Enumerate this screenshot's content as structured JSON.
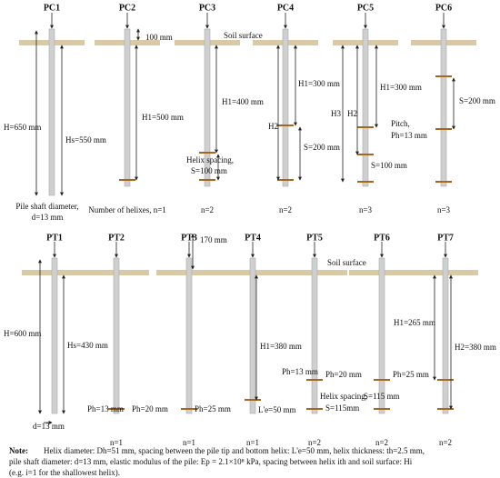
{
  "top_row": {
    "pile_labels": [
      "PC1",
      "PC2",
      "PC3",
      "PC4",
      "PC5",
      "PC6"
    ],
    "annotations": [
      "H=650 mm",
      "Hs=550 mm",
      "Pile shaft diameter,",
      "d=13 mm",
      "100 mm",
      "H1=500 mm",
      "Number of helixes, n=1",
      "Soil surface",
      "H1=400 mm",
      "Helix spacing,",
      "S=100 mm",
      "n=2",
      "H1=300 mm",
      "H2",
      "S=200 mm",
      "n=2",
      "H1=300 mm",
      "H3",
      "H2",
      "S=100 mm",
      "n=3",
      "S=200 mm",
      "Pitch,",
      "Ph=13 mm",
      "n=3"
    ]
  },
  "bottom_row": {
    "pile_labels": [
      "PT1",
      "PT2",
      "PT3",
      "PT4",
      "PT5",
      "PT6",
      "PT7"
    ],
    "annotations": [
      "H=600 mm",
      "Hs=430 mm",
      "d=13 mm",
      "Ph=13 mm",
      "n=1",
      "170 mm",
      "Ph=20 mm",
      "Ph=25 mm",
      "n=1",
      "H1=380 mm",
      "Ph=13 mm",
      "L'e=50 mm",
      "n=1",
      "Soil surface",
      "Ph=20 mm",
      "Helix spacing,",
      "S=115mm",
      "n=2",
      "Ph=25 mm",
      "S=115 mm",
      "n=2",
      "H1=265 mm",
      "H2=380 mm",
      "n=2"
    ]
  },
  "note": {
    "label": "Note:",
    "lines": [
      "Helix diameter: Dh=51 mm, spacing between the pile tip and bottom helix: L'e=50 mm,      helix thickness: th=2.5 mm,",
      "pile shaft diameter: d=13 mm,  elastic modulus of the pile: Ep = 2.1×10⁸ kPa,     spacing between helix ith and soil surface: Hi",
      "(e.g. i=1 for the shallowest helix)."
    ]
  }
}
